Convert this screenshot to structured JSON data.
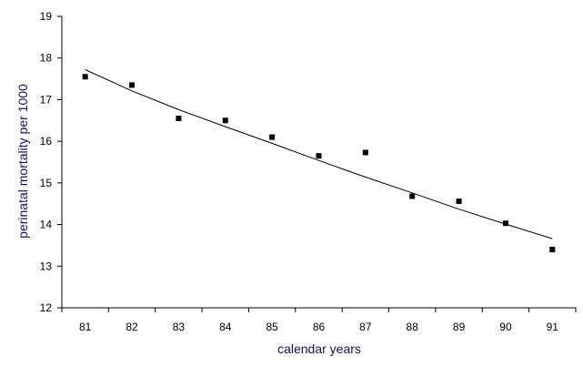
{
  "chart_data": {
    "type": "scatter",
    "title": "",
    "xlabel": "calendar years",
    "ylabel": "perinatal mortality per 1000",
    "x_categories": [
      "81",
      "82",
      "83",
      "84",
      "85",
      "86",
      "87",
      "88",
      "89",
      "90",
      "91"
    ],
    "y_ticks": [
      "12",
      "13",
      "14",
      "15",
      "16",
      "17",
      "18",
      "19"
    ],
    "ylim": [
      12,
      19
    ],
    "grid": false,
    "legend": "none",
    "series": [
      {
        "kind": "points",
        "marker": "square",
        "color": "#000000",
        "values": [
          17.55,
          17.35,
          16.55,
          16.5,
          16.1,
          15.65,
          15.73,
          14.68,
          14.56,
          14.03,
          13.4
        ]
      },
      {
        "kind": "fitted-line",
        "color": "#000000",
        "values": [
          17.72,
          17.21,
          16.76,
          16.35,
          15.95,
          15.54,
          15.14,
          14.76,
          14.37,
          14.01,
          13.66
        ]
      }
    ]
  }
}
